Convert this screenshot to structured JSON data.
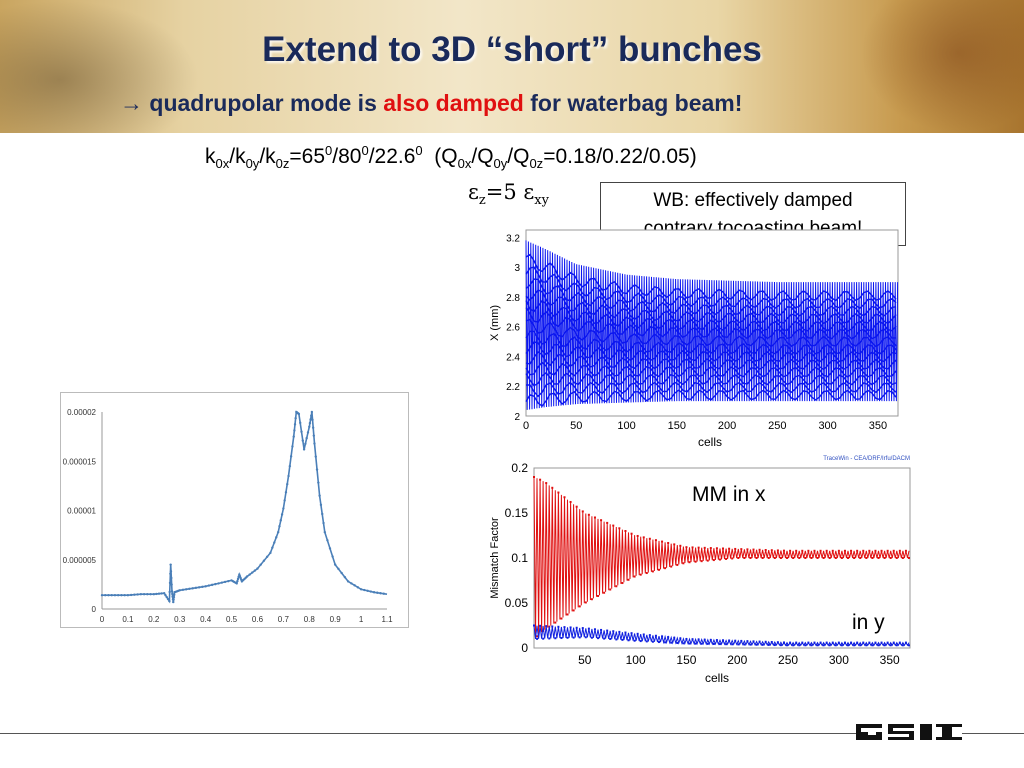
{
  "header": {
    "title": "Extend to 3D “short” bunches",
    "subtitle_arrow": "→",
    "subtitle_part1": "quadrupolar mode is",
    "subtitle_highlight": "also damped",
    "subtitle_part2": "for waterbag beam!",
    "highlight_color": "#e01010"
  },
  "params": {
    "k": "k",
    "k_sub1": "0x",
    "slash1": "/k",
    "k_sub2": "0y",
    "slash2": "/k",
    "k_sub3": "0z",
    "eq1": "=65",
    "sup1": "0",
    "v2": "/80",
    "sup2": "0",
    "v3": "/22.6",
    "sup3": "0",
    "q_open": "  (Q",
    "q_sub1": "0x",
    "q_slash1": "/Q",
    "q_sub2": "0y",
    "q_slash2": "/Q",
    "q_sub3": "0z",
    "q_vals": "=0.18/0.22/0.05)"
  },
  "emittance": {
    "eps": "ε",
    "sub_z": "z",
    "eq": "=5 ε",
    "sub_xy": "xy"
  },
  "note": {
    "line1": "WB: effectively damped",
    "line2": "contrary tocoasting beam!"
  },
  "labels": {
    "mm_x": "MM in x",
    "in_y": "in y"
  },
  "chart_data": [
    {
      "type": "line",
      "x_ticks": [
        "0",
        "0.1",
        "0.2",
        "0.3",
        "0.4",
        "0.5",
        "0.6",
        "0.7",
        "0.8",
        "0.9",
        "1",
        "1.1"
      ],
      "y_ticks": [
        "0",
        "0.000005",
        "0.00001",
        "0.000015",
        "0.00002"
      ],
      "xlim": [
        0,
        1.1
      ],
      "ylim": [
        0,
        2e-05
      ],
      "color": "#4a7fb8",
      "series": [
        {
          "x": [
            0,
            0.05,
            0.1,
            0.15,
            0.2,
            0.24,
            0.26,
            0.265,
            0.27,
            0.275,
            0.28,
            0.3,
            0.35,
            0.4,
            0.45,
            0.5,
            0.52,
            0.53,
            0.54,
            0.56,
            0.6,
            0.65,
            0.68,
            0.7,
            0.72,
            0.74,
            0.75,
            0.76,
            0.78,
            0.8,
            0.81,
            0.82,
            0.84,
            0.86,
            0.9,
            0.95,
            1.0,
            1.05,
            1.1
          ],
          "y": [
            1.4e-06,
            1.4e-06,
            1.4e-06,
            1.5e-06,
            1.5e-06,
            1.6e-06,
            8e-07,
            4.5e-06,
            1.8e-06,
            7e-07,
            1.7e-06,
            1.9e-06,
            2.1e-06,
            2.3e-06,
            2.6e-06,
            2.9e-06,
            2.6e-06,
            3.5e-06,
            2.8e-06,
            3.3e-06,
            4.1e-06,
            5.7e-06,
            7.8e-06,
            1.02e-05,
            1.35e-05,
            1.75e-05,
            2e-05,
            1.98e-05,
            1.62e-05,
            1.85e-05,
            2e-05,
            1.68e-05,
            1.15e-05,
            7.8e-06,
            4.5e-06,
            2.8e-06,
            2e-06,
            1.7e-06,
            1.5e-06
          ]
        }
      ]
    },
    {
      "type": "line",
      "ylabel": "X (mm)",
      "xlabel": "cells",
      "x_ticks": [
        "0",
        "50",
        "100",
        "150",
        "200",
        "250",
        "300",
        "350"
      ],
      "y_ticks": [
        "2",
        "2.2",
        "2.4",
        "2.6",
        "2.8",
        "3",
        "3.2"
      ],
      "xlim": [
        0,
        370
      ],
      "ylim": [
        2,
        3.25
      ],
      "color": "#0b16f0",
      "envelope_upper": {
        "x": [
          0,
          20,
          50,
          100,
          150,
          200,
          250,
          300,
          370
        ],
        "y": [
          3.18,
          3.12,
          3.02,
          2.95,
          2.92,
          2.91,
          2.9,
          2.9,
          2.9
        ]
      },
      "envelope_lower": {
        "x": [
          0,
          20,
          50,
          100,
          150,
          200,
          250,
          300,
          370
        ],
        "y": [
          2.04,
          2.06,
          2.08,
          2.09,
          2.1,
          2.1,
          2.1,
          2.1,
          2.1
        ]
      }
    },
    {
      "type": "line",
      "ylabel": "Mismatch Factor",
      "xlabel": "cells",
      "annotation": "TraceWin - CEA/DRF/Irfu/DACM",
      "x_ticks": [
        "50",
        "100",
        "150",
        "200",
        "250",
        "300",
        "350"
      ],
      "y_ticks": [
        "0",
        "0.05",
        "0.1",
        "0.15",
        "0.2"
      ],
      "xlim": [
        0,
        370
      ],
      "ylim": [
        0,
        0.2
      ],
      "series": [
        {
          "color": "#e01010",
          "envelope_upper": {
            "x": [
              0,
              10,
              50,
              100,
              150,
              200,
              250,
              300,
              370
            ],
            "y": [
              0.19,
              0.185,
              0.15,
              0.125,
              0.112,
              0.11,
              0.108,
              0.108,
              0.108
            ]
          },
          "envelope_lower": {
            "x": [
              0,
              10,
              50,
              100,
              150,
              200,
              250,
              300,
              370
            ],
            "y": [
              0.01,
              0.02,
              0.05,
              0.08,
              0.095,
              0.1,
              0.1,
              0.1,
              0.1
            ]
          }
        },
        {
          "color": "#1020e0",
          "envelope_upper": {
            "x": [
              0,
              50,
              100,
              150,
              200,
              250,
              300,
              370
            ],
            "y": [
              0.025,
              0.022,
              0.016,
              0.01,
              0.008,
              0.006,
              0.006,
              0.006
            ]
          },
          "envelope_lower": {
            "x": [
              0,
              50,
              100,
              150,
              200,
              250,
              300,
              370
            ],
            "y": [
              0.01,
              0.012,
              0.008,
              0.005,
              0.004,
              0.003,
              0.003,
              0.003
            ]
          }
        }
      ]
    }
  ]
}
